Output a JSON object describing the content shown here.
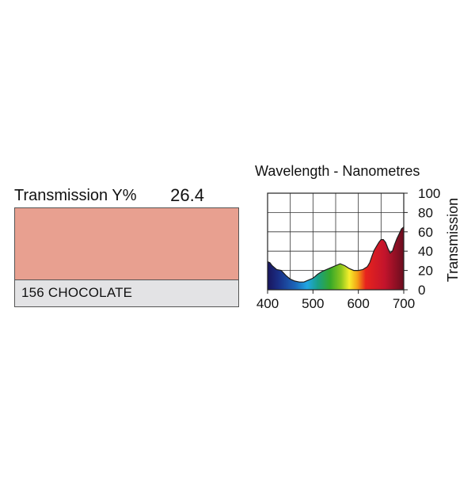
{
  "filter": {
    "transmission_label": "Transmission Y%",
    "transmission_value": "26.4",
    "name": "156 CHOCOLATE",
    "swatch_color": "#e8a090",
    "name_bar_color": "#e3e3e5"
  },
  "chart_data": {
    "type": "area",
    "title": "Wavelength - Nanometres",
    "xlabel": "Wavelength - Nanometres",
    "ylabel": "Transmission",
    "xlim": [
      400,
      700
    ],
    "ylim": [
      0,
      100
    ],
    "x_ticks": [
      "400",
      "500",
      "600",
      "700"
    ],
    "y_ticks": [
      "0",
      "20",
      "40",
      "60",
      "80",
      "100"
    ],
    "grid": true,
    "fill": "visible-spectrum gradient",
    "series": [
      {
        "x": [
          400,
          405,
          410,
          420,
          430,
          440,
          450,
          460,
          470,
          480,
          490,
          500,
          510,
          520,
          530,
          540,
          550,
          560,
          570,
          580,
          590,
          600,
          610,
          620,
          625,
          630,
          635,
          640,
          645,
          650,
          655,
          660,
          665,
          670,
          675,
          680,
          685,
          690,
          695,
          700
        ],
        "values": [
          29,
          28,
          25,
          21,
          20,
          15,
          11,
          9,
          8,
          8,
          10,
          12,
          16,
          19,
          21,
          23,
          25,
          27,
          25,
          22,
          20,
          20,
          21,
          24,
          28,
          35,
          41,
          45,
          49,
          52,
          52,
          49,
          43,
          38,
          40,
          47,
          53,
          58,
          63,
          65
        ]
      }
    ]
  }
}
